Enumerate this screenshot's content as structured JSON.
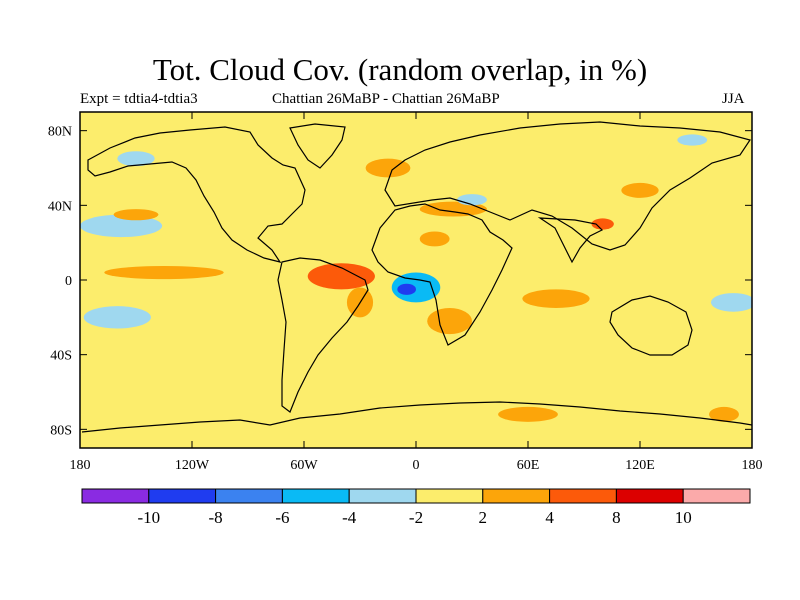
{
  "title": "Tot. Cloud Cov. (random overlap, in %)",
  "subtitle_left": "Expt = tdtia4-tdtia3",
  "subtitle_center": "Chattian  26MaBP - Chattian  26MaBP",
  "subtitle_right": "JJA",
  "map": {
    "projection": "cylindrical equidistant",
    "lon_range": [
      -180,
      180
    ],
    "lat_range": [
      -90,
      90
    ],
    "background_color": "#fced6c",
    "lat_ticks": [
      {
        "lat": 80,
        "label": "80N"
      },
      {
        "lat": 40,
        "label": "40N"
      },
      {
        "lat": 0,
        "label": "0"
      },
      {
        "lat": -40,
        "label": "40S"
      },
      {
        "lat": -80,
        "label": "80S"
      }
    ],
    "lon_ticks": [
      {
        "lon": -180,
        "label": "180"
      },
      {
        "lon": -120,
        "label": "120W"
      },
      {
        "lon": -60,
        "label": "60W"
      },
      {
        "lon": 0,
        "label": "0"
      },
      {
        "lon": 60,
        "label": "60E"
      },
      {
        "lon": 120,
        "label": "120E"
      },
      {
        "lon": 180,
        "label": "180"
      }
    ]
  },
  "colorbar": {
    "colors": [
      "#8a2be2",
      "#1f3cf0",
      "#3b82f0",
      "#0abaf5",
      "#9fd8ef",
      "#fced6c",
      "#fca50a",
      "#fc5a0a",
      "#dc0000",
      "#fbaaaa"
    ],
    "labels": [
      "-10",
      "-8",
      "-6",
      "-4",
      "-2",
      "2",
      "4",
      "8",
      "10"
    ]
  },
  "anomalies": [
    {
      "name": "tropical-pacific-positive",
      "lon": -135,
      "lat": 4,
      "rx": 32,
      "ry": 3.5,
      "level": 4
    },
    {
      "name": "south-america-north-positive",
      "lon": -40,
      "lat": 2,
      "rx": 18,
      "ry": 7,
      "level": 8
    },
    {
      "name": "south-america-east-positive",
      "lon": -30,
      "lat": -12,
      "rx": 7,
      "ry": 8,
      "level": 4
    },
    {
      "name": "tropical-atlantic-negative",
      "lon": 0,
      "lat": -4,
      "rx": 13,
      "ry": 8,
      "level": -4
    },
    {
      "name": "tropical-atlantic-negative-core",
      "lon": -5,
      "lat": -5,
      "rx": 5,
      "ry": 3,
      "level": -8
    },
    {
      "name": "africa-sahel-positive",
      "lon": 10,
      "lat": 22,
      "rx": 8,
      "ry": 4,
      "level": 4
    },
    {
      "name": "southern-africa-positive",
      "lon": 18,
      "lat": -22,
      "rx": 12,
      "ry": 7,
      "level": 4
    },
    {
      "name": "mediterranean-positive",
      "lon": 20,
      "lat": 38,
      "rx": 18,
      "ry": 4,
      "level": 4
    },
    {
      "name": "mediterranean-negative",
      "lon": 30,
      "lat": 43,
      "rx": 8,
      "ry": 3,
      "level": -2
    },
    {
      "name": "north-atlantic-positive",
      "lon": -15,
      "lat": 60,
      "rx": 12,
      "ry": 5,
      "level": 4
    },
    {
      "name": "north-pacific-negative",
      "lon": -158,
      "lat": 29,
      "rx": 22,
      "ry": 6,
      "level": -2
    },
    {
      "name": "north-pacific-positive",
      "lon": -150,
      "lat": 35,
      "rx": 12,
      "ry": 3,
      "level": 4
    },
    {
      "name": "east-pacific-negative",
      "lon": -160,
      "lat": -20,
      "rx": 18,
      "ry": 6,
      "level": -2
    },
    {
      "name": "indian-ocean-positive",
      "lon": 75,
      "lat": -10,
      "rx": 18,
      "ry": 5,
      "level": 4
    },
    {
      "name": "west-pacific-negative",
      "lon": 170,
      "lat": -12,
      "rx": 12,
      "ry": 5,
      "level": -2
    },
    {
      "name": "siberia-positive",
      "lon": 120,
      "lat": 48,
      "rx": 10,
      "ry": 4,
      "level": 4
    },
    {
      "name": "arctic-negative",
      "lon": 148,
      "lat": 75,
      "rx": 8,
      "ry": 3,
      "level": -2
    },
    {
      "name": "alaska-negative",
      "lon": -150,
      "lat": 65,
      "rx": 10,
      "ry": 4,
      "level": -2
    },
    {
      "name": "southern-ocean-positive",
      "lon": 60,
      "lat": -72,
      "rx": 16,
      "ry": 4,
      "level": 4
    },
    {
      "name": "antarctica-positive",
      "lon": 165,
      "lat": -72,
      "rx": 8,
      "ry": 4,
      "level": 4
    },
    {
      "name": "china-positive",
      "lon": 100,
      "lat": 30,
      "rx": 6,
      "ry": 3,
      "level": 8
    }
  ]
}
